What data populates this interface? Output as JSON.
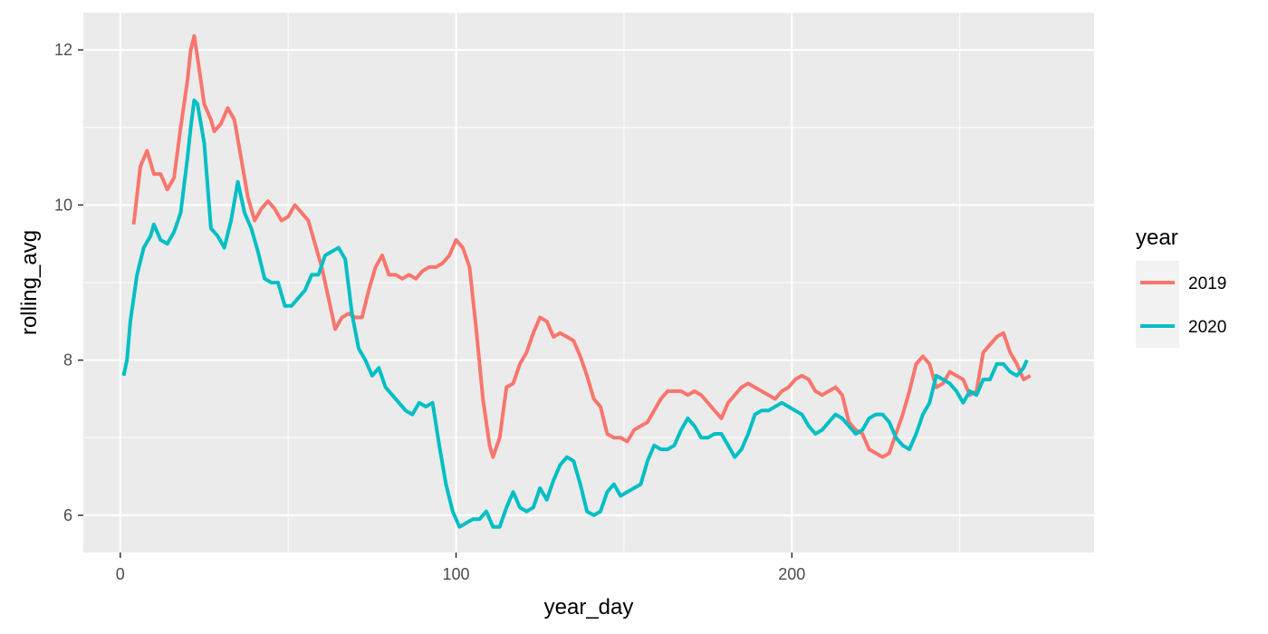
{
  "chart_data": {
    "type": "line",
    "xlabel": "year_day",
    "ylabel": "rolling_avg",
    "xlim": [
      -11,
      290
    ],
    "ylim": [
      5.52,
      12.48
    ],
    "xticks": [
      0,
      100,
      200
    ],
    "yticks": [
      6,
      8,
      10,
      12
    ],
    "grid": true,
    "legend": {
      "title": "year",
      "placement": "right"
    },
    "series": [
      {
        "name": "2019",
        "color": "#F8766D",
        "points": [
          [
            4,
            9.75
          ],
          [
            6,
            10.5
          ],
          [
            8,
            10.7
          ],
          [
            10,
            10.4
          ],
          [
            12,
            10.4
          ],
          [
            14,
            10.2
          ],
          [
            16,
            10.35
          ],
          [
            18,
            11.0
          ],
          [
            20,
            11.6
          ],
          [
            21,
            12.0
          ],
          [
            22,
            12.18
          ],
          [
            23,
            11.9
          ],
          [
            25,
            11.3
          ],
          [
            27,
            11.1
          ],
          [
            28,
            10.95
          ],
          [
            30,
            11.05
          ],
          [
            32,
            11.25
          ],
          [
            34,
            11.1
          ],
          [
            36,
            10.6
          ],
          [
            38,
            10.1
          ],
          [
            40,
            9.8
          ],
          [
            42,
            9.95
          ],
          [
            44,
            10.05
          ],
          [
            46,
            9.95
          ],
          [
            48,
            9.8
          ],
          [
            50,
            9.85
          ],
          [
            52,
            10.0
          ],
          [
            54,
            9.9
          ],
          [
            56,
            9.8
          ],
          [
            58,
            9.5
          ],
          [
            60,
            9.2
          ],
          [
            62,
            8.8
          ],
          [
            64,
            8.4
          ],
          [
            66,
            8.55
          ],
          [
            68,
            8.6
          ],
          [
            70,
            8.55
          ],
          [
            72,
            8.55
          ],
          [
            74,
            8.9
          ],
          [
            76,
            9.2
          ],
          [
            78,
            9.35
          ],
          [
            80,
            9.1
          ],
          [
            82,
            9.1
          ],
          [
            84,
            9.05
          ],
          [
            86,
            9.1
          ],
          [
            88,
            9.05
          ],
          [
            90,
            9.15
          ],
          [
            92,
            9.2
          ],
          [
            94,
            9.2
          ],
          [
            96,
            9.25
          ],
          [
            98,
            9.35
          ],
          [
            100,
            9.55
          ],
          [
            102,
            9.45
          ],
          [
            104,
            9.2
          ],
          [
            106,
            8.4
          ],
          [
            108,
            7.5
          ],
          [
            110,
            6.9
          ],
          [
            111,
            6.75
          ],
          [
            113,
            7.0
          ],
          [
            115,
            7.65
          ],
          [
            117,
            7.7
          ],
          [
            119,
            7.95
          ],
          [
            121,
            8.1
          ],
          [
            123,
            8.35
          ],
          [
            125,
            8.55
          ],
          [
            127,
            8.5
          ],
          [
            129,
            8.3
          ],
          [
            131,
            8.35
          ],
          [
            133,
            8.3
          ],
          [
            135,
            8.25
          ],
          [
            137,
            8.05
          ],
          [
            139,
            7.8
          ],
          [
            141,
            7.5
          ],
          [
            143,
            7.4
          ],
          [
            145,
            7.05
          ],
          [
            147,
            7.0
          ],
          [
            149,
            7.0
          ],
          [
            151,
            6.95
          ],
          [
            153,
            7.1
          ],
          [
            155,
            7.15
          ],
          [
            157,
            7.2
          ],
          [
            159,
            7.35
          ],
          [
            161,
            7.5
          ],
          [
            163,
            7.6
          ],
          [
            165,
            7.6
          ],
          [
            167,
            7.6
          ],
          [
            169,
            7.55
          ],
          [
            171,
            7.6
          ],
          [
            173,
            7.55
          ],
          [
            175,
            7.45
          ],
          [
            177,
            7.35
          ],
          [
            179,
            7.25
          ],
          [
            181,
            7.45
          ],
          [
            183,
            7.55
          ],
          [
            185,
            7.65
          ],
          [
            187,
            7.7
          ],
          [
            189,
            7.65
          ],
          [
            191,
            7.6
          ],
          [
            193,
            7.55
          ],
          [
            195,
            7.5
          ],
          [
            197,
            7.6
          ],
          [
            199,
            7.65
          ],
          [
            201,
            7.75
          ],
          [
            203,
            7.8
          ],
          [
            205,
            7.75
          ],
          [
            207,
            7.6
          ],
          [
            209,
            7.55
          ],
          [
            211,
            7.6
          ],
          [
            213,
            7.65
          ],
          [
            215,
            7.55
          ],
          [
            217,
            7.2
          ],
          [
            219,
            7.1
          ],
          [
            221,
            7.05
          ],
          [
            223,
            6.85
          ],
          [
            225,
            6.8
          ],
          [
            227,
            6.75
          ],
          [
            229,
            6.8
          ],
          [
            231,
            7.05
          ],
          [
            233,
            7.3
          ],
          [
            235,
            7.6
          ],
          [
            237,
            7.95
          ],
          [
            239,
            8.05
          ],
          [
            241,
            7.95
          ],
          [
            243,
            7.65
          ],
          [
            245,
            7.7
          ],
          [
            247,
            7.85
          ],
          [
            249,
            7.8
          ],
          [
            251,
            7.75
          ],
          [
            253,
            7.55
          ],
          [
            255,
            7.6
          ],
          [
            257,
            8.1
          ],
          [
            259,
            8.2
          ],
          [
            261,
            8.3
          ],
          [
            263,
            8.35
          ],
          [
            265,
            8.1
          ],
          [
            267,
            7.95
          ],
          [
            269,
            7.75
          ],
          [
            271,
            7.8
          ]
        ]
      },
      {
        "name": "2020",
        "color": "#00BFC4",
        "points": [
          [
            1,
            7.8
          ],
          [
            2,
            8.0
          ],
          [
            3,
            8.5
          ],
          [
            5,
            9.1
          ],
          [
            7,
            9.45
          ],
          [
            9,
            9.6
          ],
          [
            10,
            9.75
          ],
          [
            12,
            9.55
          ],
          [
            14,
            9.5
          ],
          [
            16,
            9.65
          ],
          [
            18,
            9.9
          ],
          [
            20,
            10.6
          ],
          [
            21,
            11.0
          ],
          [
            22,
            11.35
          ],
          [
            23,
            11.3
          ],
          [
            25,
            10.8
          ],
          [
            27,
            9.7
          ],
          [
            29,
            9.6
          ],
          [
            31,
            9.45
          ],
          [
            33,
            9.8
          ],
          [
            35,
            10.3
          ],
          [
            37,
            9.9
          ],
          [
            39,
            9.7
          ],
          [
            41,
            9.4
          ],
          [
            43,
            9.05
          ],
          [
            45,
            9.0
          ],
          [
            47,
            9.0
          ],
          [
            49,
            8.7
          ],
          [
            51,
            8.7
          ],
          [
            53,
            8.8
          ],
          [
            55,
            8.9
          ],
          [
            57,
            9.1
          ],
          [
            59,
            9.1
          ],
          [
            61,
            9.35
          ],
          [
            63,
            9.4
          ],
          [
            65,
            9.45
          ],
          [
            67,
            9.3
          ],
          [
            69,
            8.6
          ],
          [
            71,
            8.15
          ],
          [
            73,
            8.0
          ],
          [
            75,
            7.8
          ],
          [
            77,
            7.9
          ],
          [
            79,
            7.65
          ],
          [
            81,
            7.55
          ],
          [
            83,
            7.45
          ],
          [
            85,
            7.35
          ],
          [
            87,
            7.3
          ],
          [
            89,
            7.45
          ],
          [
            91,
            7.4
          ],
          [
            93,
            7.45
          ],
          [
            95,
            6.9
          ],
          [
            97,
            6.4
          ],
          [
            99,
            6.05
          ],
          [
            101,
            5.85
          ],
          [
            103,
            5.9
          ],
          [
            105,
            5.95
          ],
          [
            107,
            5.95
          ],
          [
            109,
            6.05
          ],
          [
            111,
            5.85
          ],
          [
            113,
            5.85
          ],
          [
            115,
            6.1
          ],
          [
            117,
            6.3
          ],
          [
            119,
            6.1
          ],
          [
            121,
            6.05
          ],
          [
            123,
            6.1
          ],
          [
            125,
            6.35
          ],
          [
            127,
            6.2
          ],
          [
            129,
            6.45
          ],
          [
            131,
            6.65
          ],
          [
            133,
            6.75
          ],
          [
            135,
            6.7
          ],
          [
            137,
            6.4
          ],
          [
            139,
            6.05
          ],
          [
            141,
            6.0
          ],
          [
            143,
            6.05
          ],
          [
            145,
            6.3
          ],
          [
            147,
            6.4
          ],
          [
            149,
            6.25
          ],
          [
            151,
            6.3
          ],
          [
            153,
            6.35
          ],
          [
            155,
            6.4
          ],
          [
            157,
            6.7
          ],
          [
            159,
            6.9
          ],
          [
            161,
            6.85
          ],
          [
            163,
            6.85
          ],
          [
            165,
            6.9
          ],
          [
            167,
            7.1
          ],
          [
            169,
            7.25
          ],
          [
            171,
            7.15
          ],
          [
            173,
            7.0
          ],
          [
            175,
            7.0
          ],
          [
            177,
            7.05
          ],
          [
            179,
            7.05
          ],
          [
            181,
            6.9
          ],
          [
            183,
            6.75
          ],
          [
            185,
            6.85
          ],
          [
            187,
            7.05
          ],
          [
            189,
            7.3
          ],
          [
            191,
            7.35
          ],
          [
            193,
            7.35
          ],
          [
            195,
            7.4
          ],
          [
            197,
            7.45
          ],
          [
            199,
            7.4
          ],
          [
            201,
            7.35
          ],
          [
            203,
            7.3
          ],
          [
            205,
            7.15
          ],
          [
            207,
            7.05
          ],
          [
            209,
            7.1
          ],
          [
            211,
            7.2
          ],
          [
            213,
            7.3
          ],
          [
            215,
            7.25
          ],
          [
            217,
            7.15
          ],
          [
            219,
            7.05
          ],
          [
            221,
            7.1
          ],
          [
            223,
            7.25
          ],
          [
            225,
            7.3
          ],
          [
            227,
            7.3
          ],
          [
            229,
            7.2
          ],
          [
            231,
            7.0
          ],
          [
            233,
            6.9
          ],
          [
            235,
            6.85
          ],
          [
            237,
            7.05
          ],
          [
            239,
            7.3
          ],
          [
            241,
            7.45
          ],
          [
            243,
            7.8
          ],
          [
            245,
            7.75
          ],
          [
            247,
            7.7
          ],
          [
            249,
            7.6
          ],
          [
            251,
            7.45
          ],
          [
            253,
            7.6
          ],
          [
            255,
            7.55
          ],
          [
            257,
            7.75
          ],
          [
            259,
            7.75
          ],
          [
            261,
            7.95
          ],
          [
            263,
            7.95
          ],
          [
            265,
            7.85
          ],
          [
            267,
            7.8
          ],
          [
            269,
            7.9
          ],
          [
            270,
            8.0
          ]
        ]
      }
    ]
  }
}
